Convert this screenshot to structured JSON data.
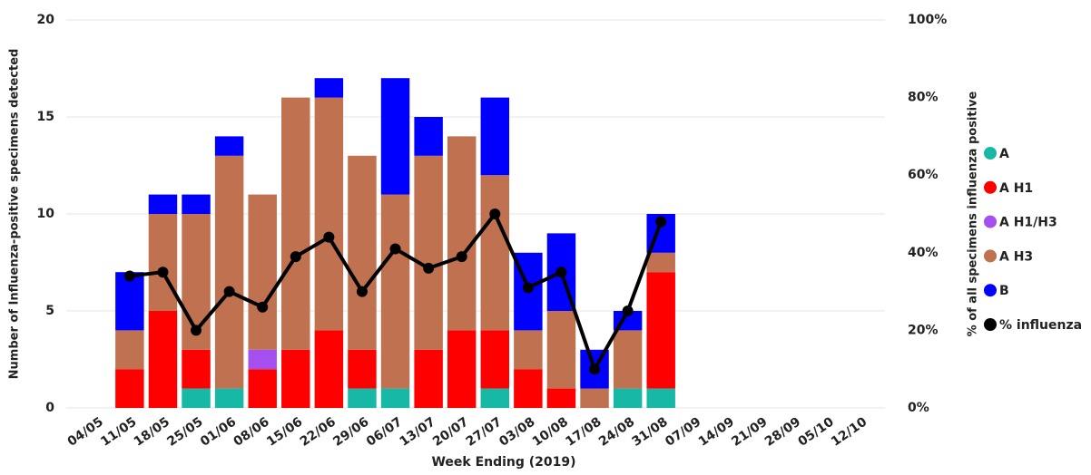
{
  "chart_data": {
    "type": "bar",
    "stacked": true,
    "x_label": "Week Ending (2019)",
    "y_label": "Number of Influenza-positive specimens detected",
    "y2_label": "% of all specimens influenza positive",
    "categories": [
      "04/05",
      "11/05",
      "18/05",
      "25/05",
      "01/06",
      "08/06",
      "15/06",
      "22/06",
      "29/06",
      "06/07",
      "13/07",
      "20/07",
      "27/07",
      "03/08",
      "10/08",
      "17/08",
      "24/08",
      "31/08",
      "07/09",
      "14/09",
      "21/09",
      "28/09",
      "05/10",
      "12/10"
    ],
    "series": [
      {
        "name": "A",
        "color": "#17b9a6",
        "values": [
          null,
          0,
          0,
          1,
          1,
          0,
          0,
          0,
          1,
          1,
          0,
          0,
          1,
          0,
          0,
          0,
          1,
          1,
          null,
          null,
          null,
          null,
          null,
          null
        ]
      },
      {
        "name": "A H1",
        "color": "#ff0000",
        "values": [
          null,
          2,
          5,
          2,
          0,
          2,
          3,
          4,
          2,
          0,
          3,
          4,
          3,
          2,
          1,
          0,
          0,
          6,
          null,
          null,
          null,
          null,
          null,
          null
        ]
      },
      {
        "name": "A H1/H3",
        "color": "#a64ff0",
        "values": [
          null,
          0,
          0,
          0,
          0,
          1,
          0,
          0,
          0,
          0,
          0,
          0,
          0,
          0,
          0,
          0,
          0,
          0,
          null,
          null,
          null,
          null,
          null,
          null
        ]
      },
      {
        "name": "A H3",
        "color": "#bf7150",
        "values": [
          null,
          2,
          5,
          7,
          12,
          8,
          13,
          12,
          10,
          10,
          10,
          10,
          8,
          2,
          4,
          1,
          3,
          1,
          null,
          null,
          null,
          null,
          null,
          null
        ]
      },
      {
        "name": "B",
        "color": "#0000ff",
        "values": [
          null,
          3,
          1,
          1,
          1,
          0,
          0,
          1,
          0,
          6,
          2,
          0,
          4,
          4,
          4,
          2,
          1,
          2,
          null,
          null,
          null,
          null,
          null,
          null
        ]
      },
      {
        "name": "% influenza",
        "color": "#000000",
        "type": "line",
        "axis": "y2",
        "values": [
          null,
          34,
          35,
          20,
          30,
          26,
          39,
          44,
          30,
          41,
          36,
          39,
          50,
          31,
          35,
          10,
          25,
          48,
          null,
          null,
          null,
          null,
          null,
          null
        ]
      }
    ],
    "ylim": [
      0,
      20
    ],
    "yticks": [
      0,
      5,
      10,
      15,
      20
    ],
    "y2lim": [
      0,
      100
    ],
    "y2ticks": [
      {
        "value": 0,
        "label": "0%"
      },
      {
        "value": 20,
        "label": "20%"
      },
      {
        "value": 40,
        "label": "40%"
      },
      {
        "value": 60,
        "label": "60%"
      },
      {
        "value": 80,
        "label": "80%"
      },
      {
        "value": 100,
        "label": "100%"
      }
    ],
    "grid": true,
    "legend": "right"
  }
}
